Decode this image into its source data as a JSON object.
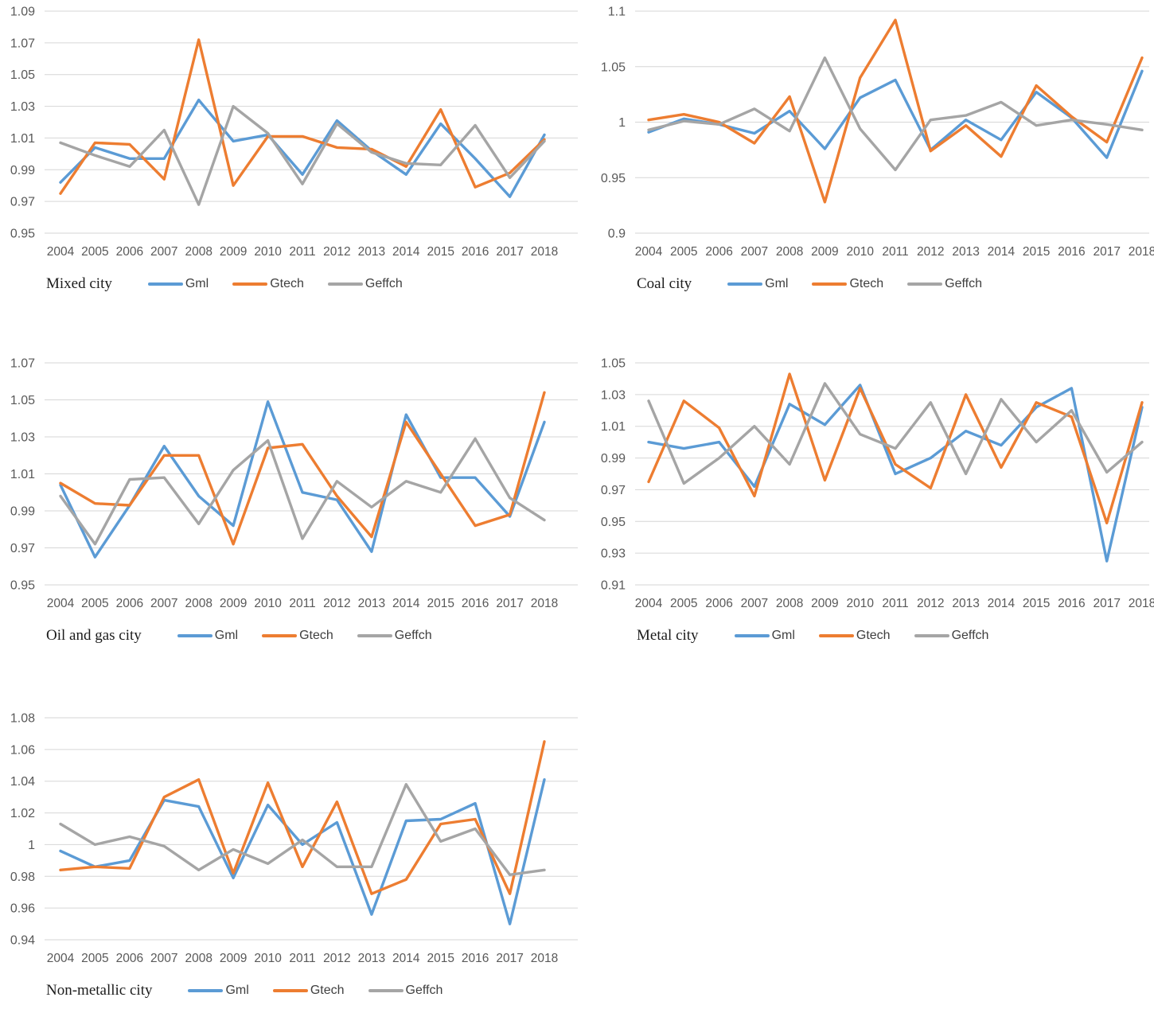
{
  "colors": {
    "Gml": "#5B9BD5",
    "Gtech": "#ED7D31",
    "Geffch": "#A5A5A5"
  },
  "chart_data": [
    {
      "type": "line",
      "title": "Mixed city",
      "legend_position": "bottom",
      "grid": true,
      "categories": [
        "2004",
        "2005",
        "2006",
        "2007",
        "2008",
        "2009",
        "2010",
        "2011",
        "2012",
        "2013",
        "2014",
        "2015",
        "2016",
        "2017",
        "2018"
      ],
      "ylim": [
        0.95,
        1.09
      ],
      "yticks": [
        0.95,
        0.97,
        0.99,
        1.01,
        1.03,
        1.05,
        1.07,
        1.09
      ],
      "series": [
        {
          "name": "Gml",
          "values": [
            0.982,
            1.004,
            0.997,
            0.997,
            1.034,
            1.008,
            1.012,
            0.987,
            1.021,
            1.002,
            0.987,
            1.019,
            0.997,
            0.973,
            1.012
          ]
        },
        {
          "name": "Gtech",
          "values": [
            0.975,
            1.007,
            1.006,
            0.984,
            1.072,
            0.98,
            1.011,
            1.011,
            1.004,
            1.003,
            0.992,
            1.028,
            0.979,
            0.988,
            1.009
          ]
        },
        {
          "name": "Geffch",
          "values": [
            1.007,
            0.999,
            0.992,
            1.015,
            0.968,
            1.03,
            1.013,
            0.981,
            1.019,
            1.001,
            0.994,
            0.993,
            1.018,
            0.985,
            1.008
          ]
        }
      ]
    },
    {
      "type": "line",
      "title": "Coal city",
      "legend_position": "bottom",
      "grid": true,
      "categories": [
        "2004",
        "2005",
        "2006",
        "2007",
        "2008",
        "2009",
        "2010",
        "2011",
        "2012",
        "2013",
        "2014",
        "2015",
        "2016",
        "2017",
        "2018"
      ],
      "ylim": [
        0.9,
        1.1
      ],
      "yticks": [
        0.9,
        0.95,
        1,
        1.05,
        1.1
      ],
      "series": [
        {
          "name": "Gml",
          "values": [
            0.991,
            1.003,
            0.998,
            0.99,
            1.01,
            0.976,
            1.022,
            1.038,
            0.975,
            1.002,
            0.984,
            1.027,
            1.004,
            0.968,
            1.046
          ]
        },
        {
          "name": "Gtech",
          "values": [
            1.002,
            1.007,
            1.0,
            0.981,
            1.023,
            0.928,
            1.04,
            1.092,
            0.974,
            0.997,
            0.969,
            1.033,
            1.005,
            0.982,
            1.058
          ]
        },
        {
          "name": "Geffch",
          "values": [
            0.993,
            1.001,
            0.998,
            1.012,
            0.992,
            1.058,
            0.994,
            0.957,
            1.002,
            1.006,
            1.018,
            0.997,
            1.002,
            0.998,
            0.993
          ]
        }
      ]
    },
    {
      "type": "line",
      "title": "Oil and gas city",
      "legend_position": "bottom",
      "grid": true,
      "categories": [
        "2004",
        "2005",
        "2006",
        "2007",
        "2008",
        "2009",
        "2010",
        "2011",
        "2012",
        "2013",
        "2014",
        "2015",
        "2016",
        "2017",
        "2018"
      ],
      "ylim": [
        0.95,
        1.07
      ],
      "yticks": [
        0.95,
        0.97,
        0.99,
        1.01,
        1.03,
        1.05,
        1.07
      ],
      "series": [
        {
          "name": "Gml",
          "values": [
            1.004,
            0.965,
            0.993,
            1.025,
            0.998,
            0.982,
            1.049,
            1.0,
            0.996,
            0.968,
            1.042,
            1.008,
            1.008,
            0.987,
            1.038
          ]
        },
        {
          "name": "Gtech",
          "values": [
            1.005,
            0.994,
            0.993,
            1.02,
            1.02,
            0.972,
            1.024,
            1.026,
            0.998,
            0.976,
            1.038,
            1.01,
            0.982,
            0.988,
            1.054
          ]
        },
        {
          "name": "Geffch",
          "values": [
            0.998,
            0.972,
            1.007,
            1.008,
            0.983,
            1.012,
            1.028,
            0.975,
            1.006,
            0.992,
            1.006,
            1.0,
            1.029,
            0.997,
            0.985
          ]
        }
      ]
    },
    {
      "type": "line",
      "title": "Metal city",
      "legend_position": "bottom",
      "grid": true,
      "categories": [
        "2004",
        "2005",
        "2006",
        "2007",
        "2008",
        "2009",
        "2010",
        "2011",
        "2012",
        "2013",
        "2014",
        "2015",
        "2016",
        "2017",
        "2018"
      ],
      "ylim": [
        0.91,
        1.05
      ],
      "yticks": [
        0.91,
        0.93,
        0.95,
        0.97,
        0.99,
        1.01,
        1.03,
        1.05
      ],
      "series": [
        {
          "name": "Gml",
          "values": [
            1.0,
            0.996,
            1.0,
            0.972,
            1.024,
            1.011,
            1.036,
            0.98,
            0.99,
            1.007,
            0.998,
            1.022,
            1.034,
            0.925,
            1.022
          ]
        },
        {
          "name": "Gtech",
          "values": [
            0.975,
            1.026,
            1.009,
            0.966,
            1.043,
            0.976,
            1.034,
            0.986,
            0.971,
            1.03,
            0.984,
            1.025,
            1.016,
            0.949,
            1.025
          ]
        },
        {
          "name": "Geffch",
          "values": [
            1.026,
            0.974,
            0.99,
            1.01,
            0.986,
            1.037,
            1.005,
            0.996,
            1.025,
            0.98,
            1.027,
            1.0,
            1.02,
            0.981,
            1.0
          ]
        }
      ]
    },
    {
      "type": "line",
      "title": "Non-metallic city",
      "legend_position": "bottom",
      "grid": true,
      "categories": [
        "2004",
        "2005",
        "2006",
        "2007",
        "2008",
        "2009",
        "2010",
        "2011",
        "2012",
        "2013",
        "2014",
        "2015",
        "2016",
        "2017",
        "2018"
      ],
      "ylim": [
        0.94,
        1.08
      ],
      "yticks": [
        0.94,
        0.96,
        0.98,
        1,
        1.02,
        1.04,
        1.06,
        1.08
      ],
      "series": [
        {
          "name": "Gml",
          "values": [
            0.996,
            0.986,
            0.99,
            1.028,
            1.024,
            0.979,
            1.025,
            1.0,
            1.014,
            0.956,
            1.015,
            1.016,
            1.026,
            0.95,
            1.041
          ]
        },
        {
          "name": "Gtech",
          "values": [
            0.984,
            0.986,
            0.985,
            1.03,
            1.041,
            0.982,
            1.039,
            0.986,
            1.027,
            0.969,
            0.978,
            1.013,
            1.016,
            0.969,
            1.065
          ]
        },
        {
          "name": "Geffch",
          "values": [
            1.013,
            1.0,
            1.005,
            0.999,
            0.984,
            0.997,
            0.988,
            1.003,
            0.986,
            0.986,
            1.038,
            1.002,
            1.01,
            0.981,
            0.984
          ]
        }
      ]
    }
  ]
}
